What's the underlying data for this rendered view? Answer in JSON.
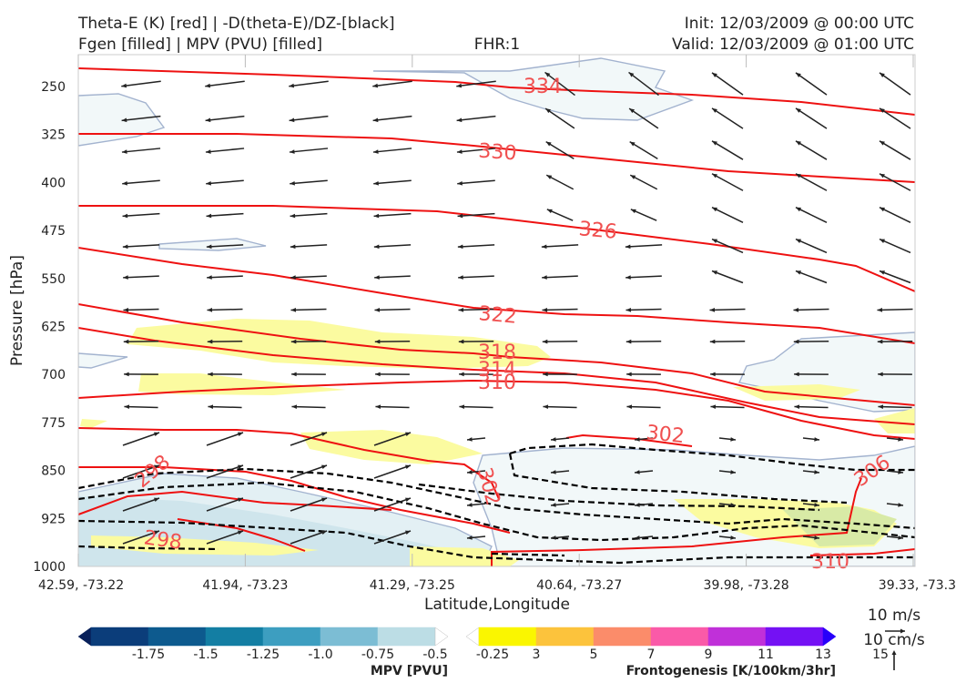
{
  "header": {
    "left_line1": "Theta-E (K) [red] | -D(theta-E)/DZ-[black]",
    "left_line2": "Fgen [filled] | MPV (PVU) [filled]",
    "center": "FHR:1",
    "right_line1": "Init: 12/03/2009 @ 00:00 UTC",
    "right_line2": "Valid: 12/03/2009 @ 01:00 UTC"
  },
  "chart_data": {
    "type": "cross-section",
    "ylabel": "Pressure [hPa]",
    "xlabel": "Latitude,Longitude",
    "y_ticks": [
      "250",
      "325",
      "400",
      "475",
      "550",
      "625",
      "700",
      "775",
      "850",
      "925",
      "1000"
    ],
    "x_ticks": [
      "42.59, -73.22",
      "41.94, -73.23",
      "41.29, -73.25",
      "40.64, -73.27",
      "39.98, -73.28",
      "39.33, -73.3"
    ],
    "theta_e_labels": [
      "334",
      "330",
      "326",
      "322",
      "318",
      "314",
      "310",
      "302",
      "306",
      "298",
      "298",
      "302",
      "310"
    ],
    "colors": {
      "theta_e": "#ee1111",
      "theta_e_label": "#f05050",
      "dthetae_dz": "#000000",
      "mpv_outline": "#a3b3cf",
      "mpv_fill": "#f2f8f9",
      "fgen_fill": "#fbfba0"
    },
    "wind_reference": {
      "horizontal": "10 m/s",
      "vertical": "10 cm/s"
    }
  },
  "colorbars": {
    "mpv": {
      "label": "MPV [PVU]",
      "ticks": [
        "-1.75",
        "-1.5",
        "-1.25",
        "-1.0",
        "-0.75",
        "-0.5",
        "-0.25"
      ],
      "colors": [
        "#08205a",
        "#0b3d7a",
        "#0d5a8e",
        "#137ea3",
        "#3d9ec0",
        "#7cbdd4",
        "#bcdde5",
        "#ffffff"
      ]
    },
    "fgen": {
      "label": "Frontogenesis [K/100km/3hr]",
      "ticks": [
        "3",
        "5",
        "7",
        "9",
        "11",
        "13",
        "15"
      ],
      "colors": [
        "#ffffff",
        "#faf600",
        "#fcc33c",
        "#fb8c6a",
        "#fa5aa8",
        "#c030d9",
        "#7411f4",
        "#2800fa"
      ]
    }
  }
}
